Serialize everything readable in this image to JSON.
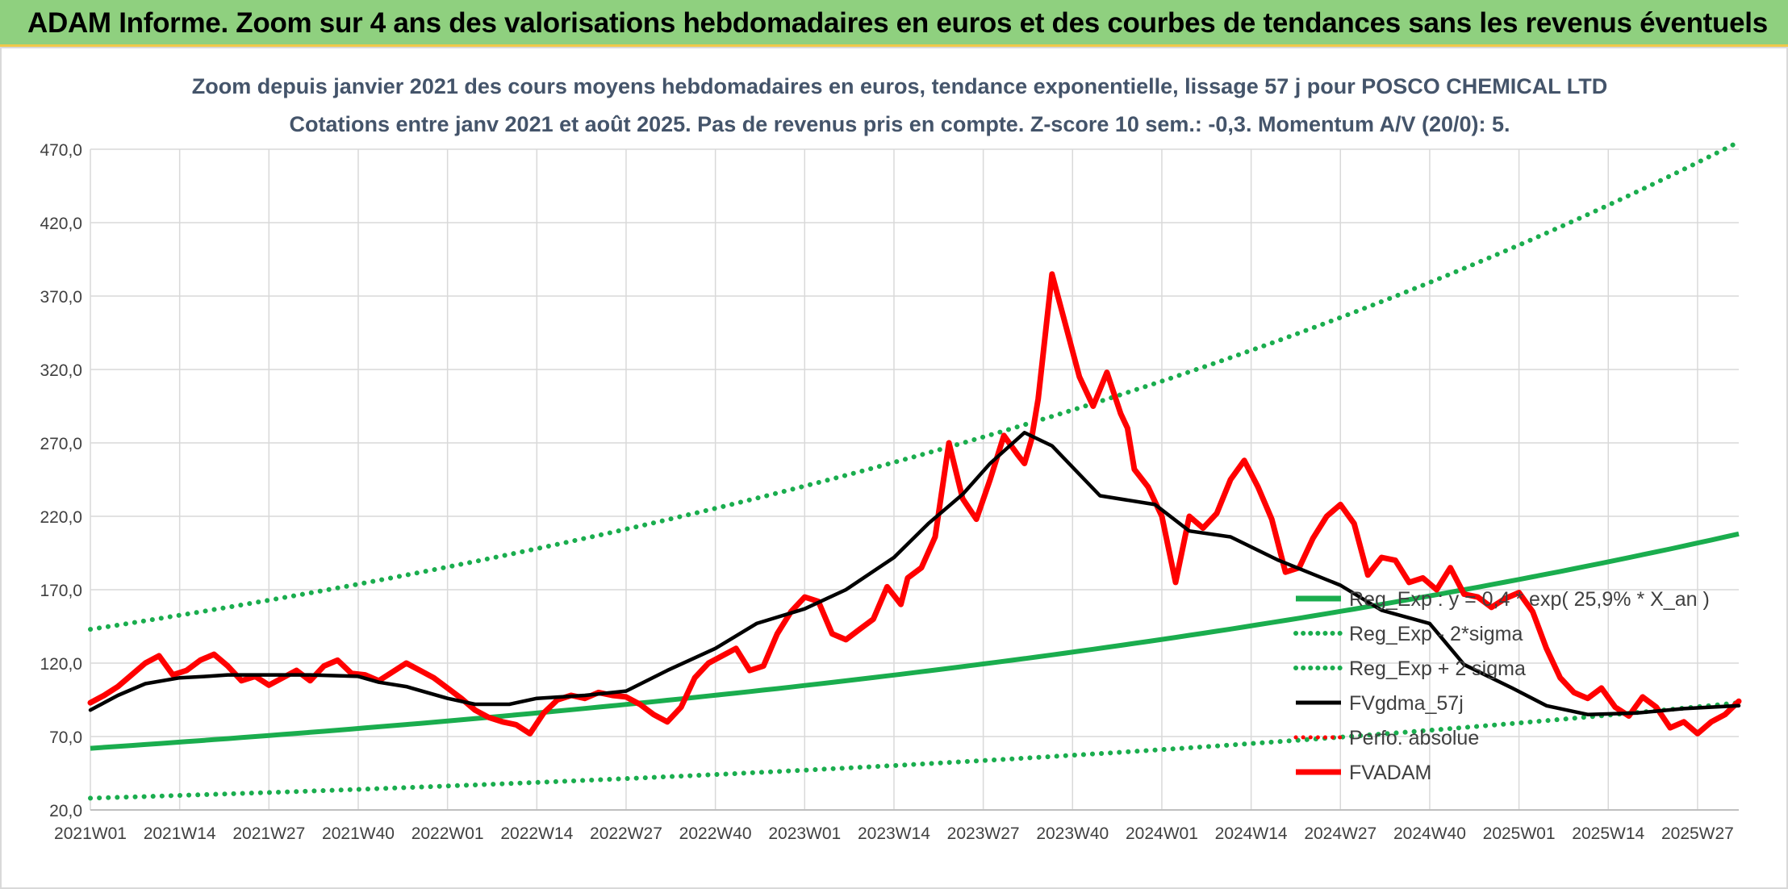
{
  "header": {
    "banner": "ADAM Informe. Zoom sur 4 ans des valorisations hebdomadaires en euros et des courbes de tendances sans les revenus éventuels"
  },
  "chart_data": {
    "type": "line",
    "title_line1": "Zoom depuis janvier 2021 des cours moyens hebdomadaires en euros, tendance exponentielle, lissage 57 j pour POSCO CHEMICAL LTD",
    "title_line2": "Cotations entre janv 2021 et août 2025. Pas de revenus pris en compte. Z-score 10 sem.: -0,3. Momentum A/V (20/0): 5.",
    "ylim": [
      20,
      470
    ],
    "yticks": [
      "470,0",
      "420,0",
      "370,0",
      "320,0",
      "270,0",
      "220,0",
      "170,0",
      "120,0",
      "70,0",
      "20,0"
    ],
    "xticks": [
      "2021W01",
      "2021W14",
      "2021W27",
      "2021W40",
      "2022W01",
      "2022W14",
      "2022W27",
      "2022W40",
      "2023W01",
      "2023W14",
      "2023W27",
      "2023W40",
      "2024W01",
      "2024W14",
      "2024W27",
      "2024W40",
      "2025W01",
      "2025W14",
      "2025W27"
    ],
    "grid": true,
    "legend_position": "right",
    "colors": {
      "regression": "#1aad4e",
      "smooth": "#000000",
      "price": "#ff0000",
      "perf": "#ff0000"
    },
    "series": [
      {
        "name": "Reg_Exp : y = 0,4 * exp( 25,9% *  X_an )",
        "style": "solid-green",
        "x": [
          0,
          240
        ],
        "values_start_end": [
          62,
          208
        ]
      },
      {
        "name": "Reg_Exp - 2*sigma",
        "style": "dotted-green",
        "x": [
          0,
          240
        ],
        "values_start_end": [
          28,
          93
        ]
      },
      {
        "name": "Reg_Exp + 2 sigma",
        "style": "dotted-green",
        "x": [
          0,
          240
        ],
        "values_start_end": [
          143,
          475
        ]
      },
      {
        "name": "FVgdma_57j",
        "style": "solid-black",
        "x": [
          0,
          4,
          8,
          13,
          17,
          20,
          26,
          32,
          39,
          42,
          46,
          52,
          56,
          61,
          65,
          72,
          78,
          84,
          91,
          97,
          104,
          110,
          117,
          122,
          127,
          131,
          136,
          140,
          147,
          155,
          160,
          166,
          173,
          182,
          188,
          195,
          200,
          207,
          212,
          218,
          225,
          232,
          240
        ],
        "values": [
          88,
          98,
          106,
          110,
          111,
          112,
          112,
          112,
          111,
          107,
          104,
          96,
          92,
          92,
          96,
          98,
          101,
          115,
          130,
          147,
          157,
          170,
          192,
          215,
          235,
          256,
          277,
          268,
          234,
          228,
          210,
          206,
          190,
          173,
          156,
          147,
          119,
          103,
          91,
          85,
          86,
          89,
          91
        ]
      },
      {
        "name": "Perfo. absolue",
        "style": "dotted-red",
        "x": [],
        "values": []
      },
      {
        "name": "FVADAM",
        "style": "solid-red",
        "x": [
          0,
          2,
          4,
          6,
          8,
          10,
          12,
          14,
          16,
          18,
          20,
          22,
          24,
          26,
          28,
          30,
          32,
          34,
          36,
          38,
          40,
          42,
          44,
          46,
          48,
          50,
          52,
          54,
          56,
          58,
          60,
          62,
          64,
          66,
          68,
          70,
          72,
          74,
          76,
          78,
          80,
          82,
          84,
          86,
          88,
          90,
          92,
          94,
          96,
          98,
          100,
          102,
          104,
          106,
          108,
          110,
          112,
          114,
          116,
          118,
          119,
          121,
          123,
          125,
          127,
          129,
          131,
          133,
          135,
          136,
          137,
          138,
          140,
          142,
          144,
          146,
          148,
          150,
          151,
          152,
          154,
          156,
          158,
          160,
          162,
          164,
          166,
          168,
          170,
          172,
          174,
          176,
          178,
          180,
          182,
          184,
          186,
          188,
          190,
          192,
          194,
          196,
          198,
          200,
          202,
          204,
          206,
          208,
          210,
          212,
          214,
          216,
          218,
          220,
          222,
          224,
          226,
          228,
          230,
          232,
          234,
          236,
          238,
          240
        ],
        "values": [
          93,
          98,
          104,
          112,
          120,
          125,
          112,
          115,
          122,
          126,
          118,
          108,
          111,
          105,
          110,
          115,
          108,
          118,
          122,
          113,
          112,
          108,
          114,
          120,
          115,
          110,
          103,
          96,
          88,
          83,
          80,
          78,
          72,
          86,
          95,
          98,
          96,
          100,
          98,
          97,
          92,
          85,
          80,
          90,
          110,
          120,
          125,
          130,
          115,
          118,
          140,
          155,
          165,
          162,
          140,
          136,
          143,
          150,
          172,
          160,
          178,
          185,
          206,
          270,
          232,
          218,
          245,
          275,
          262,
          256,
          272,
          300,
          385,
          350,
          315,
          295,
          318,
          290,
          280,
          252,
          240,
          220,
          175,
          220,
          212,
          222,
          245,
          258,
          240,
          218,
          182,
          185,
          205,
          220,
          228,
          215,
          180,
          192,
          190,
          175,
          178,
          170,
          185,
          167,
          165,
          158,
          164,
          168,
          155,
          130,
          110,
          100,
          96,
          103,
          90,
          84,
          97,
          90,
          76,
          80,
          72,
          80,
          85,
          94
        ]
      }
    ]
  }
}
